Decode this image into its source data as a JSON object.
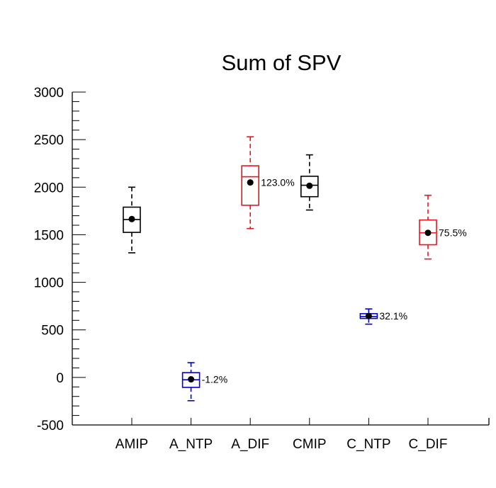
{
  "chart_data": {
    "type": "box",
    "title": "Sum of SPV",
    "xlabel": "",
    "ylabel": "",
    "ylim": [
      -500,
      3000
    ],
    "yticks": [
      3000,
      2500,
      2000,
      1500,
      1000,
      500,
      0,
      -500
    ],
    "ytick_labels": [
      "3000",
      "2500",
      "2000",
      "1500",
      "1000",
      "500",
      "0",
      "-500"
    ],
    "y_minor_step": 100,
    "grid": false,
    "categories": [
      "AMIP",
      "A_NTP",
      "A_DIF",
      "CMIP",
      "C_NTP",
      "C_DIF"
    ],
    "boxes": [
      {
        "name": "AMIP",
        "color": "#000000",
        "whisker_low": 1310,
        "q1": 1525,
        "median": 1660,
        "q3": 1790,
        "whisker_high": 2000,
        "mean": 1665,
        "annotation": null
      },
      {
        "name": "A_NTP",
        "color": "#0000cc",
        "whisker_low": -245,
        "q1": -105,
        "median": -25,
        "q3": 50,
        "whisker_high": 155,
        "mean": -20,
        "annotation": "-1.2%"
      },
      {
        "name": "A_DIF",
        "color": "#e8161b",
        "whisker_low": 1565,
        "q1": 1810,
        "median": 2110,
        "q3": 2225,
        "whisker_high": 2530,
        "mean": 2050,
        "annotation": "123.0%"
      },
      {
        "name": "CMIP",
        "color": "#000000",
        "whisker_low": 1760,
        "q1": 1900,
        "median": 2020,
        "q3": 2115,
        "whisker_high": 2340,
        "mean": 2015,
        "annotation": null
      },
      {
        "name": "C_NTP",
        "color": "#0000cc",
        "whisker_low": 560,
        "q1": 620,
        "median": 640,
        "q3": 670,
        "whisker_high": 720,
        "mean": 645,
        "annotation": "32.1%"
      },
      {
        "name": "C_DIF",
        "color": "#e8161b",
        "whisker_low": 1245,
        "q1": 1395,
        "median": 1520,
        "q3": 1655,
        "whisker_high": 1915,
        "mean": 1520,
        "annotation": "75.5%"
      }
    ]
  }
}
